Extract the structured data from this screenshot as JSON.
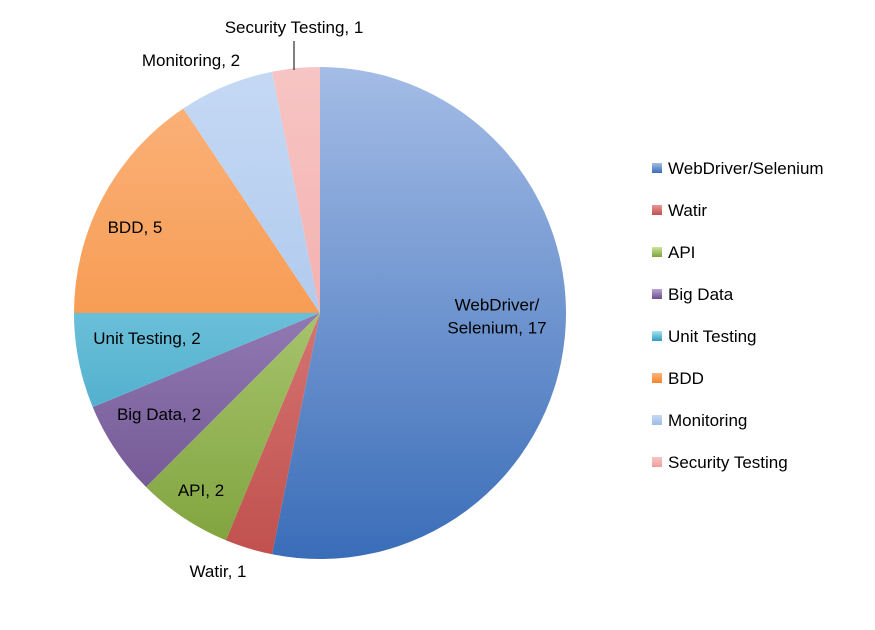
{
  "chart_data": {
    "type": "pie",
    "title": "",
    "legend_position": "right",
    "start_angle_deg": 0,
    "direction": "clockwise",
    "slices": [
      {
        "name": "WebDriver/Selenium",
        "value": 17,
        "label_lines": [
          "WebDriver/",
          "Selenium, 17"
        ],
        "color": "#4F81BD",
        "light": "#A4BCE6",
        "dark": "#3A6DB8"
      },
      {
        "name": "Watir",
        "value": 1,
        "label_lines": [
          "Watir, 1"
        ],
        "color": "#C0504D",
        "light": "#E89896",
        "dark": "#C0504D"
      },
      {
        "name": "API",
        "value": 2,
        "label_lines": [
          "API, 2"
        ],
        "color": "#9BBB59",
        "light": "#CDE59C",
        "dark": "#7FA23C"
      },
      {
        "name": "Big Data",
        "value": 2,
        "label_lines": [
          "Big Data, 2"
        ],
        "color": "#8064A2",
        "light": "#B9A4D6",
        "dark": "#6A4E8D"
      },
      {
        "name": "Unit Testing",
        "value": 2,
        "label_lines": [
          "Unit Testing, 2"
        ],
        "color": "#4BACC6",
        "light": "#A7E3F3",
        "dark": "#2D9BBE"
      },
      {
        "name": "BDD",
        "value": 5,
        "label_lines": [
          "BDD, 5"
        ],
        "color": "#F79646",
        "light": "#FBB47E",
        "dark": "#F3852C"
      },
      {
        "name": "Monitoring",
        "value": 2,
        "label_lines": [
          "Monitoring, 2"
        ],
        "color": "#8EB4E3",
        "light": "#C5D9F4",
        "dark": "#9DBCE8"
      },
      {
        "name": "Security Testing",
        "value": 1,
        "label_lines": [
          "Security Testing, 1"
        ],
        "color": "#E6B9B8",
        "light": "#F7C5C4",
        "dark": "#EF9E9C"
      }
    ]
  }
}
